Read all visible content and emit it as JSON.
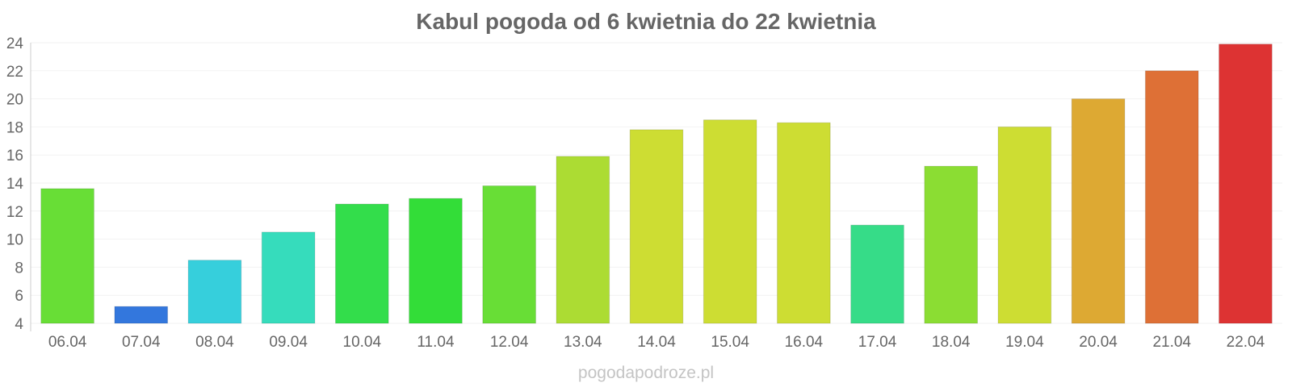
{
  "chart_data": {
    "type": "bar",
    "title": "Kabul pogoda od 6 kwietnia do 22 kwietnia",
    "xlabel": "",
    "ylabel": "",
    "categories": [
      "06.04",
      "07.04",
      "08.04",
      "09.04",
      "10.04",
      "11.04",
      "12.04",
      "13.04",
      "14.04",
      "15.04",
      "16.04",
      "17.04",
      "18.04",
      "19.04",
      "20.04",
      "21.04",
      "22.04"
    ],
    "values": [
      13.6,
      5.2,
      8.5,
      10.5,
      12.5,
      12.9,
      13.8,
      15.9,
      17.8,
      18.5,
      18.3,
      11.0,
      15.2,
      18.0,
      20.0,
      22.0,
      23.9
    ],
    "colors": [
      "#68de36",
      "#3377dd",
      "#36cfdc",
      "#36dcbc",
      "#33dd4b",
      "#33dd38",
      "#68de36",
      "#acdc33",
      "#cddd33",
      "#cddd33",
      "#cddd33",
      "#36dc88",
      "#8bdd33",
      "#cddd33",
      "#dda933",
      "#de7036",
      "#dd3333"
    ],
    "ylim": [
      4,
      24
    ],
    "yticks": [
      4,
      6,
      8,
      10,
      12,
      14,
      16,
      18,
      20,
      22,
      24
    ],
    "grid": true,
    "legend": "none"
  },
  "watermark": "pogodapodroze.pl"
}
